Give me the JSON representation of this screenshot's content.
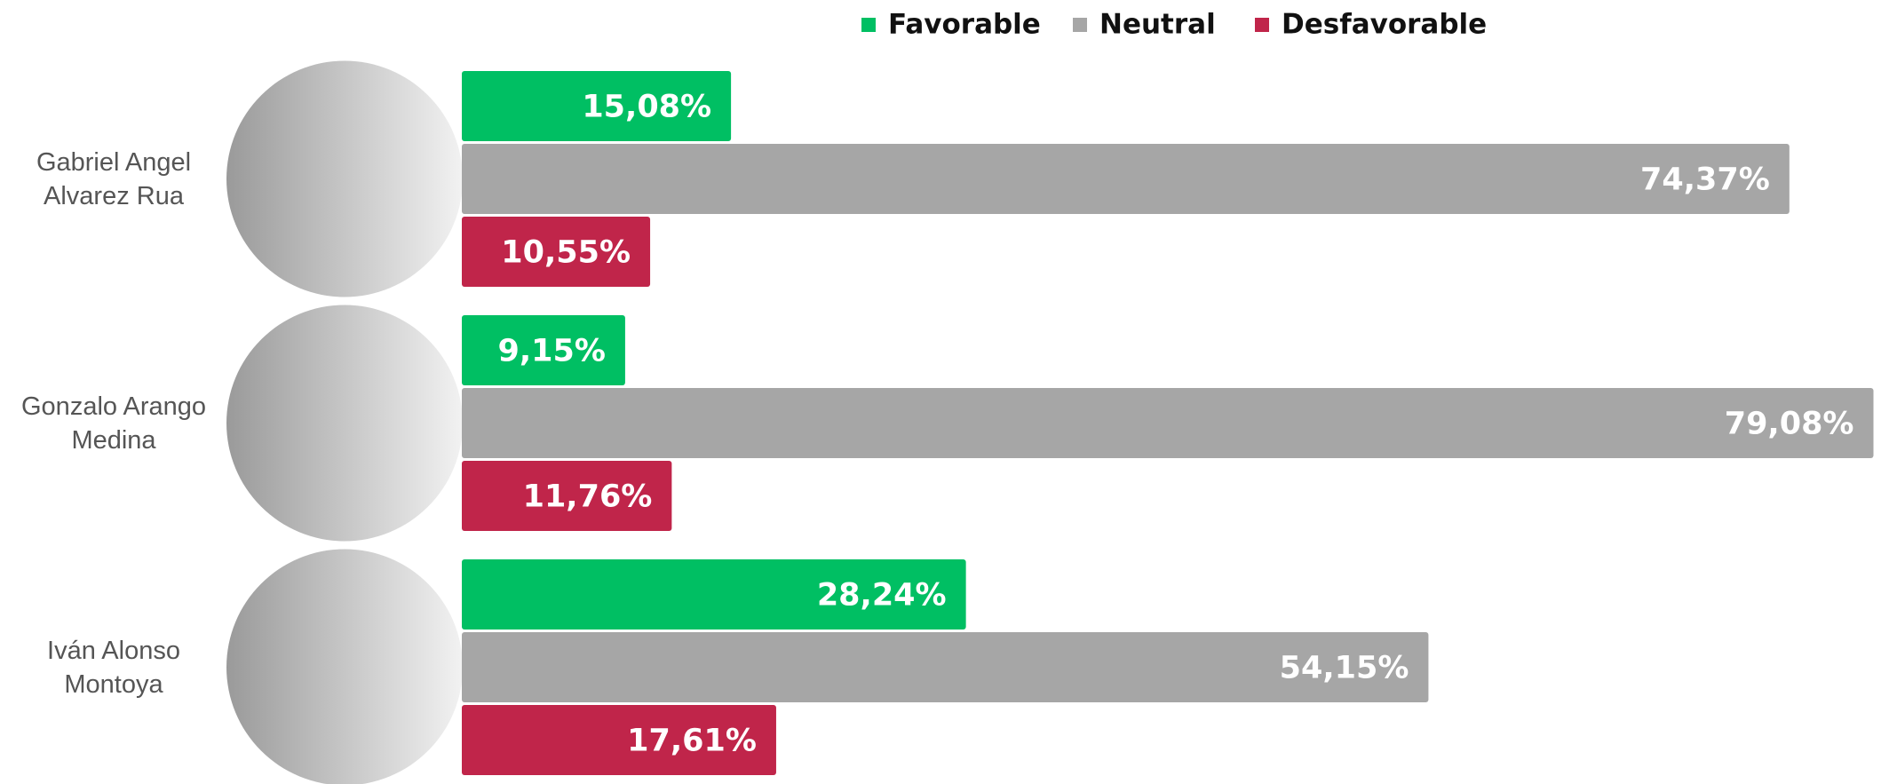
{
  "chart_data": {
    "type": "bar",
    "categories": [
      "Gabriel Angel Alvarez Rua",
      "Gonzalo Arango Medina",
      "Iván Alonso Montoya"
    ],
    "series": [
      {
        "name": "Favorable",
        "color": "#00bf63",
        "values": [
          15.08,
          9.15,
          28.24
        ],
        "value_labels": [
          "15,08%",
          "9,15%",
          "28,24%"
        ]
      },
      {
        "name": "Neutral",
        "color": "#a6a6a6",
        "values": [
          74.37,
          79.08,
          54.15
        ],
        "value_labels": [
          "74,37%",
          "79,08%",
          "54,15%"
        ]
      },
      {
        "name": "Desfavorable",
        "color": "#c0254a",
        "values": [
          10.55,
          11.76,
          17.61
        ],
        "value_labels": [
          "10,55%",
          "11,76%",
          "17,61%"
        ]
      }
    ]
  }
}
